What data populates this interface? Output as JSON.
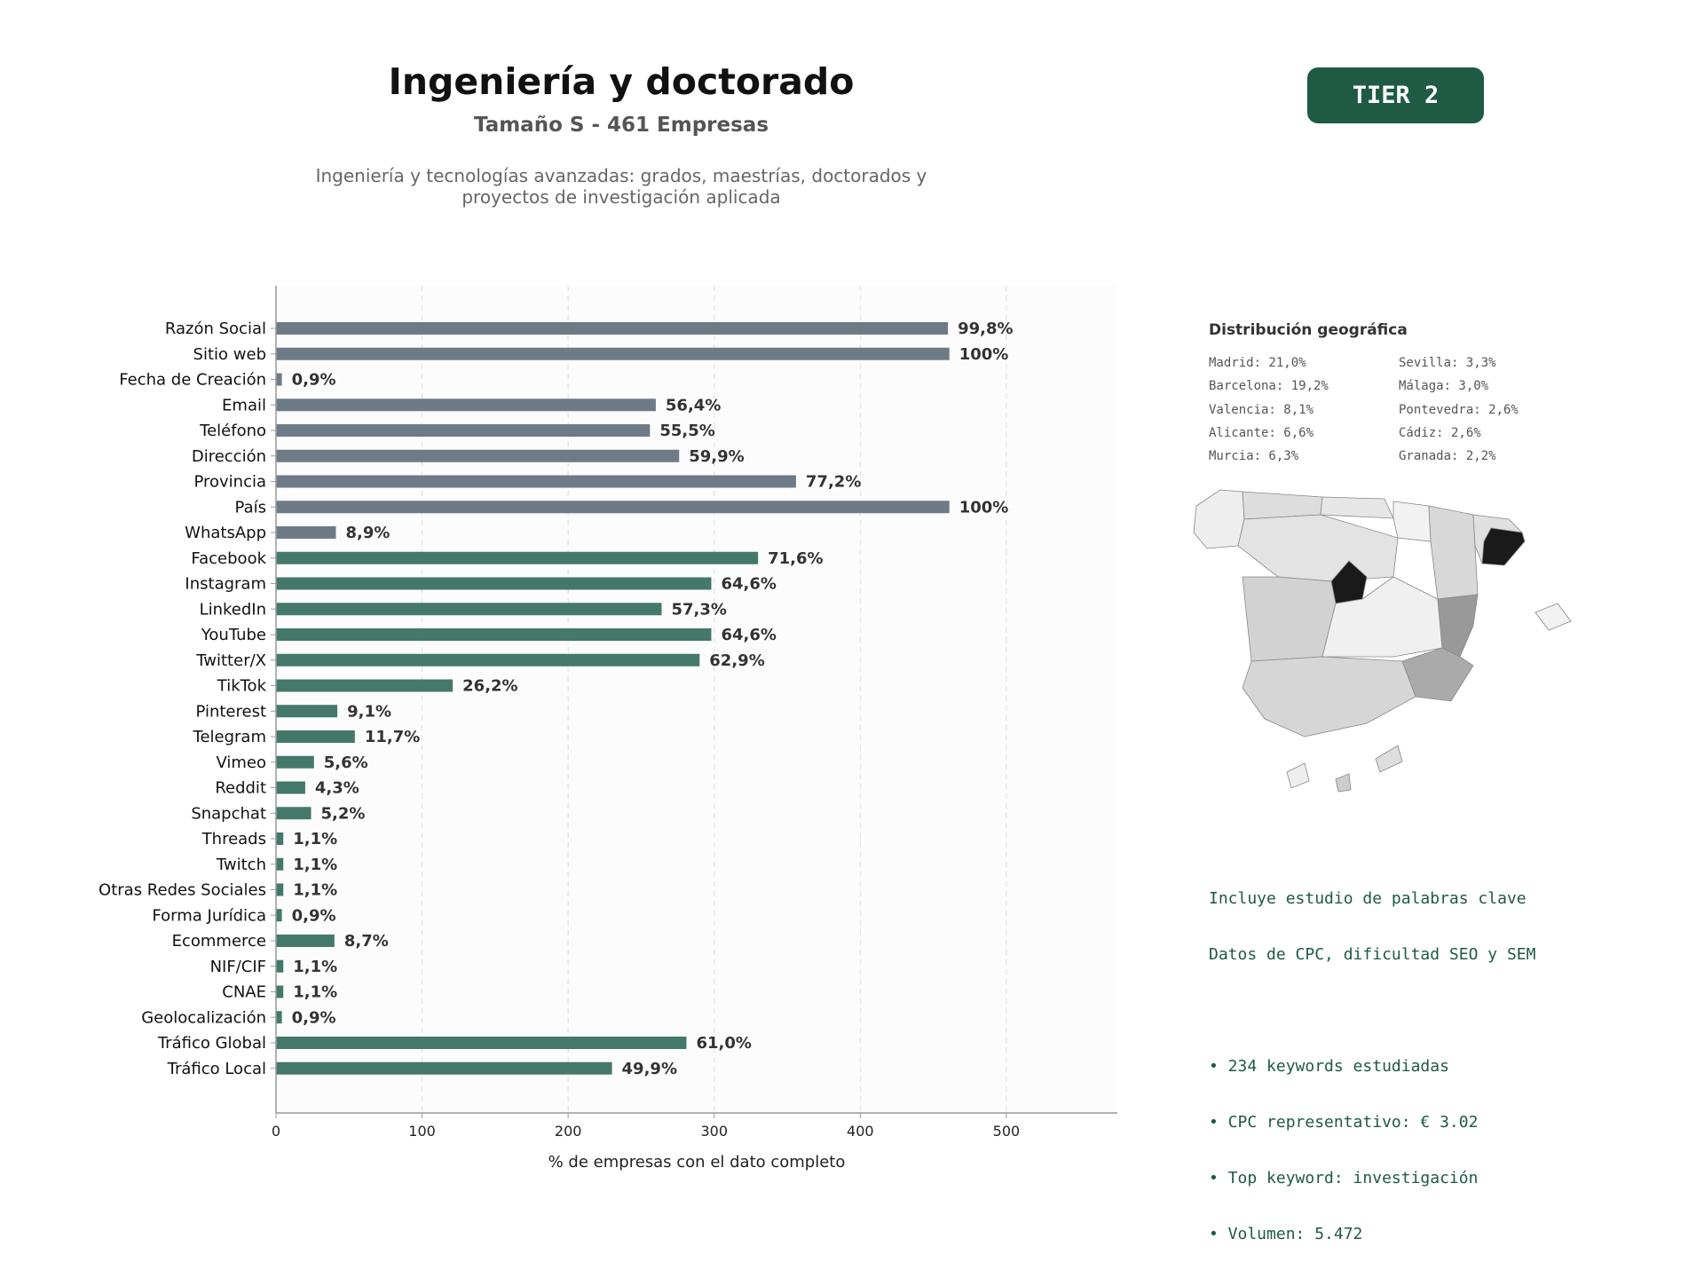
{
  "header": {
    "title": "Ingeniería y doctorado",
    "subtitle": "Tamaño S - 461 Empresas",
    "description_line1": "Ingeniería y tecnologías avanzadas: grados, maestrías, doctorados y",
    "description_line2": "proyectos de investigación aplicada",
    "tier": "TIER 2"
  },
  "colors": {
    "data_fields": "#6e7b87",
    "social_fields": "#44786a",
    "badge": "#1e5a44",
    "keyword_text": "#1e5a44",
    "grid": "#dddddd",
    "plot_bg": "#fcfcfc"
  },
  "chart_data": {
    "type": "bar",
    "orientation": "horizontal",
    "xlabel": "% de empresas con el dato completo",
    "xlim": [
      0,
      576
    ],
    "xticks": [
      0,
      100,
      200,
      300,
      400,
      500
    ],
    "grid": "vertical dashed",
    "categories": [
      "Razón Social",
      "Sitio web",
      "Fecha de Creación",
      "Email",
      "Teléfono",
      "Dirección",
      "Provincia",
      "País",
      "WhatsApp",
      "Facebook",
      "Instagram",
      "LinkedIn",
      "YouTube",
      "Twitter/X",
      "TikTok",
      "Pinterest",
      "Telegram",
      "Vimeo",
      "Reddit",
      "Snapchat",
      "Threads",
      "Twitch",
      "Otras Redes Sociales",
      "Forma Jurídica",
      "Ecommerce",
      "NIF/CIF",
      "CNAE",
      "Geolocalización",
      "Tráfico Global",
      "Tráfico Local"
    ],
    "values": [
      460,
      461,
      4,
      260,
      256,
      276,
      356,
      461,
      41,
      330,
      298,
      264,
      298,
      290,
      121,
      42,
      54,
      26,
      20,
      24,
      5,
      5,
      5,
      4,
      40,
      5,
      5,
      4,
      281,
      230
    ],
    "labels": [
      "99,8%",
      "100%",
      "0,9%",
      "56,4%",
      "55,5%",
      "59,9%",
      "77,2%",
      "100%",
      "8,9%",
      "71,6%",
      "64,6%",
      "57,3%",
      "64,6%",
      "62,9%",
      "26,2%",
      "9,1%",
      "11,7%",
      "5,6%",
      "4,3%",
      "5,2%",
      "1,1%",
      "1,1%",
      "1,1%",
      "0,9%",
      "8,7%",
      "1,1%",
      "1,1%",
      "0,9%",
      "61,0%",
      "49,9%"
    ],
    "groups": [
      "data",
      "data",
      "data",
      "data",
      "data",
      "data",
      "data",
      "data",
      "data",
      "social",
      "social",
      "social",
      "social",
      "social",
      "social",
      "social",
      "social",
      "social",
      "social",
      "social",
      "social",
      "social",
      "social",
      "social",
      "social",
      "social",
      "social",
      "social",
      "social",
      "social"
    ]
  },
  "geo": {
    "title": "Distribución geográfica",
    "col1": [
      "Madrid: 21,0%",
      "Barcelona: 19,2%",
      "Valencia: 8,1%",
      "Alicante: 6,6%",
      "Murcia: 6,3%"
    ],
    "col2": [
      "Sevilla: 3,3%",
      "Málaga: 3,0%",
      "Pontevedra: 2,6%",
      "Cádiz: 2,6%",
      "Granada: 2,2%"
    ]
  },
  "keywords": {
    "line1": "Incluye estudio de palabras clave",
    "line2": "Datos de CPC, dificultad SEO y SEM",
    "bullet1": "• 234 keywords estudiadas",
    "bullet2": "• CPC representativo: € 3.02",
    "bullet3": "• Top keyword: investigación",
    "bullet4": "• Volumen: 5.472"
  }
}
